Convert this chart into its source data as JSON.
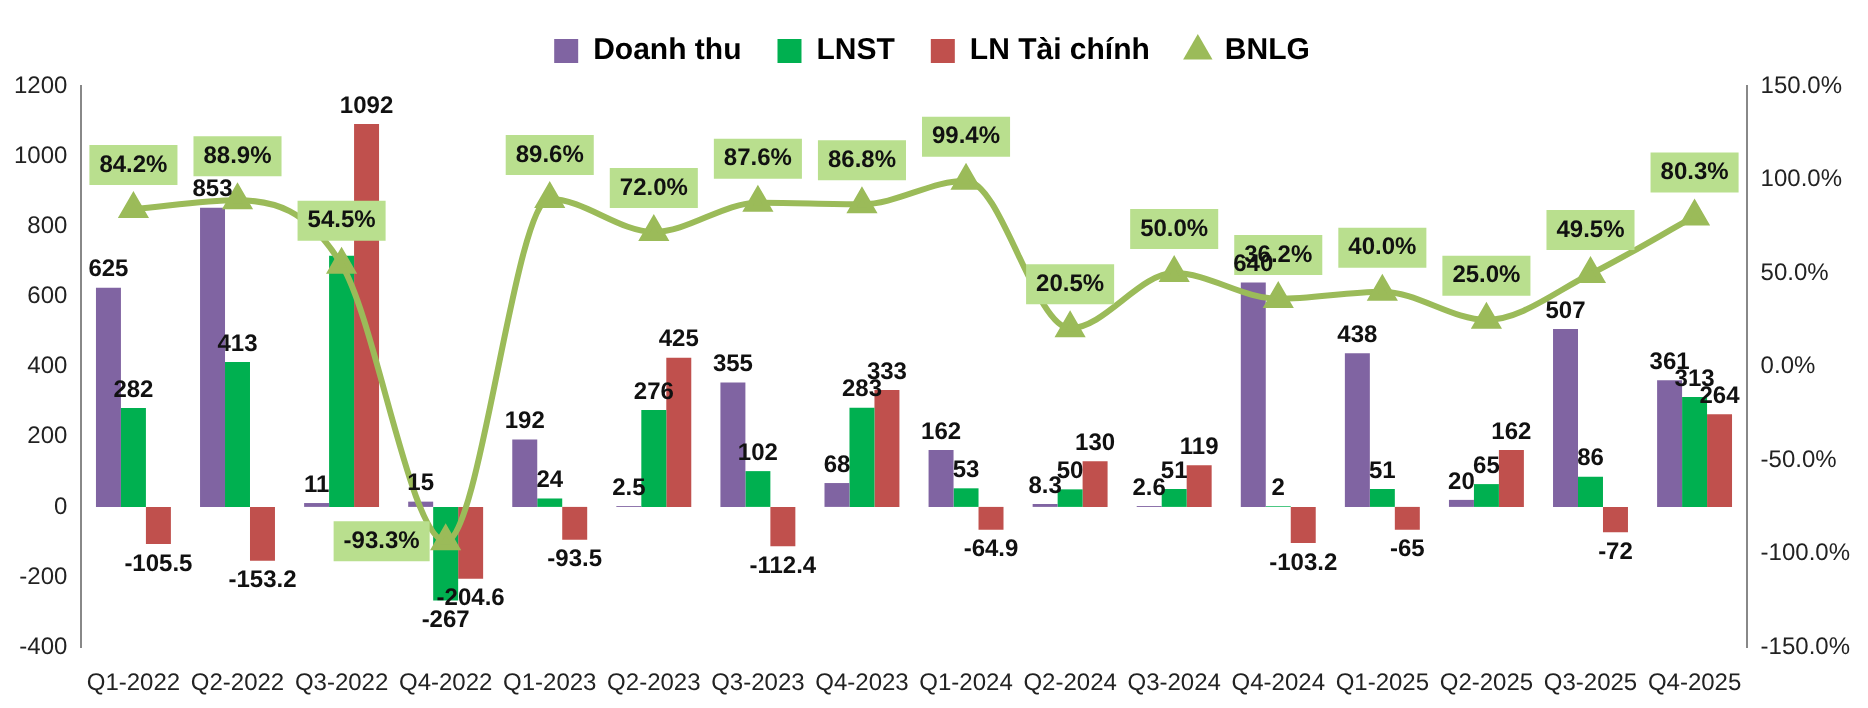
{
  "chart_data": {
    "type": "bar",
    "categories": [
      "Q1-2022",
      "Q2-2022",
      "Q3-2022",
      "Q4-2022",
      "Q1-2023",
      "Q2-2023",
      "Q3-2023",
      "Q4-2023",
      "Q1-2024",
      "Q2-2024",
      "Q3-2024",
      "Q4-2024",
      "Q1-2025",
      "Q2-2025",
      "Q3-2025",
      "Q4-2025"
    ],
    "series": [
      {
        "name": "Doanh thu",
        "color": "#8064a2",
        "values": [
          625,
          853,
          11,
          15,
          192,
          2.5,
          355,
          68,
          162,
          8.3,
          2.6,
          640,
          438,
          20,
          507,
          361
        ],
        "value_labels": [
          "625",
          "853",
          "11",
          "15",
          "192",
          "2.5",
          "355",
          "68",
          "162",
          "8.3",
          "2.6",
          "640",
          "438",
          "20",
          "507",
          "361"
        ]
      },
      {
        "name": "LNST",
        "color": "#00b050",
        "values": [
          282,
          413,
          716,
          -267,
          24,
          276,
          102,
          283,
          53,
          50,
          51,
          2,
          51,
          65,
          86,
          313
        ],
        "value_labels": [
          "282",
          "413",
          null,
          "-267",
          "24",
          "276",
          "102",
          "283",
          "53",
          "50",
          "51",
          "2",
          "51",
          "65",
          "86",
          "313"
        ]
      },
      {
        "name": "LN Tài chính",
        "color": "#c0504d",
        "values": [
          -105.5,
          -153.2,
          1092,
          -204.6,
          -93.5,
          425,
          -112.4,
          333,
          -64.9,
          130,
          119,
          -103.2,
          -65,
          162,
          -72,
          264
        ],
        "value_labels": [
          "-105.5",
          "-153.2",
          "1092",
          "-204.6",
          "-93.5",
          "425",
          "-112.4",
          "333",
          "-64.9",
          "130",
          "119",
          "-103.2",
          "-65",
          "162",
          "-72",
          "264"
        ]
      },
      {
        "name": "BNLG",
        "type": "line",
        "axis": "y2",
        "color": "#9bbb59",
        "values": [
          84.2,
          88.9,
          54.5,
          -93.3,
          89.6,
          72.0,
          87.6,
          86.8,
          99.4,
          20.5,
          50.0,
          36.2,
          40.0,
          25.0,
          49.5,
          80.3
        ],
        "value_labels": [
          "84.2%",
          "88.9%",
          "54.5%",
          "-93.3%",
          "89.6%",
          "72.0%",
          "87.6%",
          "86.8%",
          "99.4%",
          "20.5%",
          "50.0%",
          "36.2%",
          "40.0%",
          "25.0%",
          "49.5%",
          "80.3%"
        ]
      }
    ],
    "ylim": [
      -400,
      1200
    ],
    "yticks": [
      -400,
      -200,
      0,
      200,
      400,
      600,
      800,
      1000,
      1200
    ],
    "y2lim": [
      -150,
      150
    ],
    "y2ticks": [
      {
        "value": -150,
        "label": "-150.0%"
      },
      {
        "value": -100,
        "label": "-100.0%"
      },
      {
        "value": -50,
        "label": "-50.0%"
      },
      {
        "value": 0,
        "label": "0.0%"
      },
      {
        "value": 50,
        "label": "50.0%"
      },
      {
        "value": 100,
        "label": "100.0%"
      },
      {
        "value": 150,
        "label": "150.0%"
      }
    ],
    "grid": false,
    "legend": "top",
    "marker": "triangle",
    "line_style": "solid"
  }
}
